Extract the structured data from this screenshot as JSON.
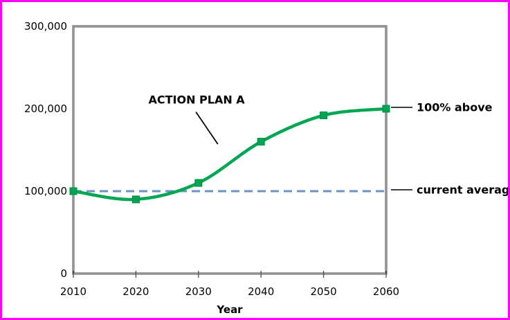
{
  "page": {
    "background_color": "#ffffff",
    "border_color": "#ff00ff"
  },
  "chart_data": {
    "type": "line",
    "title": "",
    "xlabel": "Year",
    "ylabel": "",
    "x": [
      2010,
      2020,
      2030,
      2040,
      2050,
      2060
    ],
    "x_tick_labels": [
      "2010",
      "2020",
      "2030",
      "2040",
      "2050",
      "2060"
    ],
    "y_ticks": [
      0,
      100000,
      200000,
      300000
    ],
    "y_tick_labels": [
      "0",
      "100,000",
      "200,000",
      "300,000"
    ],
    "xlim": [
      2010,
      2060
    ],
    "ylim": [
      0,
      300000
    ],
    "grid": false,
    "legend_position": "none",
    "series": [
      {
        "name": "ACTION PLAN A",
        "values": [
          100000,
          90000,
          110000,
          160000,
          192000,
          200000
        ],
        "color": "#00a651",
        "marker": "square",
        "marker_edge_color": "#008a43",
        "line_style": "smooth"
      }
    ],
    "reference_line": {
      "value": 100000,
      "label": "current average",
      "color": "#6d92c8",
      "style": "dashed"
    },
    "annotations": {
      "series_label": {
        "text": "ACTION PLAN A",
        "x": 2029.7,
        "y": 211000,
        "leader": {
          "x1": 2029.6,
          "y1": 196000,
          "x2": 2033.1,
          "y2": 157000
        }
      },
      "right_labels": [
        {
          "id": "pct-above",
          "text": "100% above",
          "y": 200000
        },
        {
          "id": "current-average",
          "text": "current average",
          "y": 100000
        }
      ]
    },
    "frame_color_dark": "#4d4d4d",
    "frame_color_light": "#d9d9d9",
    "tick_color": "#4d4d4d",
    "text_color": "#000000"
  }
}
